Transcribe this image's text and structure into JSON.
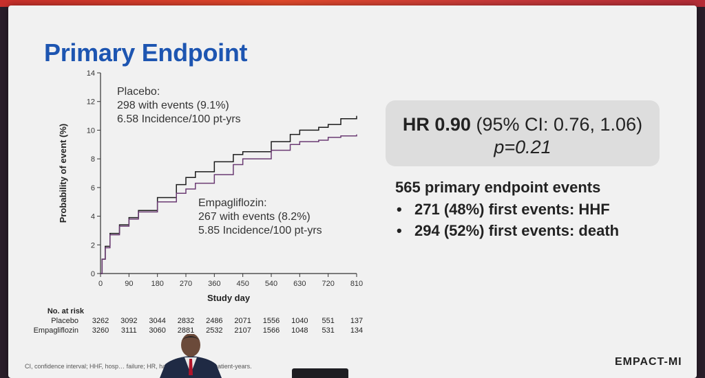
{
  "slide": {
    "title": "Primary Endpoint",
    "hr_bold": "HR 0.90",
    "hr_ci": " (95% CI: 0.76, 1.06)",
    "p_value": "p=0.21",
    "events_head": "565 primary endpoint events",
    "events_bullets": [
      "271 (48%) first events: HHF",
      "294 (52%) first events: death"
    ],
    "footnote": "CI, confidence interval; HHF, hosp… failure; HR, hazard ratio; pt-yrs, patient-years.",
    "brand": "EMPACT-MI"
  },
  "chart_data": {
    "type": "line",
    "xlabel": "Study day",
    "ylabel": "Probability of event (%)",
    "xlim": [
      0,
      810
    ],
    "ylim": [
      0,
      14
    ],
    "xticks": [
      0,
      90,
      180,
      270,
      360,
      450,
      540,
      630,
      720,
      810
    ],
    "yticks": [
      0,
      2,
      4,
      6,
      8,
      10,
      12,
      14
    ],
    "grid": false,
    "series": [
      {
        "name": "Placebo",
        "color": "#1a1a1a",
        "annotation": [
          "Placebo:",
          "298 with events (9.1%)",
          "6.58 Incidence/100 pt-yrs"
        ],
        "x": [
          0,
          5,
          15,
          30,
          60,
          90,
          120,
          180,
          240,
          270,
          300,
          360,
          420,
          450,
          540,
          600,
          630,
          690,
          720,
          760,
          810
        ],
        "y": [
          0,
          1.0,
          1.9,
          2.8,
          3.4,
          3.9,
          4.4,
          5.3,
          6.2,
          6.7,
          7.1,
          7.8,
          8.3,
          8.5,
          9.2,
          9.7,
          10.0,
          10.2,
          10.4,
          10.8,
          11.0
        ]
      },
      {
        "name": "Empagliflozin",
        "color": "#6a3a72",
        "annotation": [
          "Empagliflozin:",
          "267 with events (8.2%)",
          "5.85 Incidence/100 pt-yrs"
        ],
        "x": [
          0,
          5,
          15,
          30,
          60,
          90,
          120,
          180,
          240,
          270,
          300,
          360,
          420,
          450,
          540,
          600,
          630,
          690,
          720,
          760,
          810
        ],
        "y": [
          0,
          1.0,
          1.8,
          2.7,
          3.3,
          3.8,
          4.3,
          5.0,
          5.6,
          5.9,
          6.3,
          6.9,
          7.6,
          8.0,
          8.6,
          9.0,
          9.2,
          9.3,
          9.5,
          9.6,
          9.7
        ]
      }
    ],
    "at_risk": {
      "header": "No. at risk",
      "rows": [
        {
          "label": "Placebo",
          "values": [
            "3262",
            "3092",
            "3044",
            "2832",
            "2486",
            "2071",
            "1556",
            "1040",
            "551",
            "137"
          ]
        },
        {
          "label": "Empagliflozin",
          "values": [
            "3260",
            "3111",
            "3060",
            "2881",
            "2532",
            "2107",
            "1566",
            "1048",
            "531",
            "134"
          ]
        }
      ]
    }
  }
}
